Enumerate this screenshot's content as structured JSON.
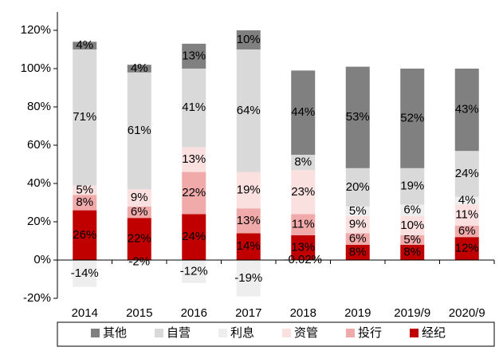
{
  "chart_data": {
    "type": "bar",
    "stacked": true,
    "categories": [
      "2014",
      "2015",
      "2016",
      "2017",
      "2018",
      "2019",
      "2019/9",
      "2020/9"
    ],
    "series": [
      {
        "name": "其他",
        "color": "#808080",
        "values": [
          4,
          4,
          13,
          10,
          44,
          53,
          52,
          43
        ],
        "value_labels": [
          "4%",
          "4%",
          "13%",
          "10%",
          "44%",
          "53%",
          "52%",
          "43%"
        ]
      },
      {
        "name": "自营",
        "color": "#d9d9d9",
        "values": [
          71,
          61,
          41,
          64,
          8,
          20,
          19,
          24
        ],
        "value_labels": [
          "71%",
          "61%",
          "41%",
          "64%",
          "8%",
          "20%",
          "19%",
          "24%"
        ]
      },
      {
        "name": "利息",
        "color": "#eeeeee",
        "values": [
          -14,
          -2,
          -12,
          -19,
          -0.02,
          5,
          6,
          4
        ],
        "value_labels": [
          "-14%",
          "-2%",
          "-12%",
          "-19%",
          "-0.02%",
          "5%",
          "6%",
          "4%"
        ]
      },
      {
        "name": "资管",
        "color": "#fbe0e0",
        "values": [
          5,
          9,
          13,
          19,
          23,
          9,
          10,
          11
        ],
        "value_labels": [
          "5%",
          "9%",
          "13%",
          "19%",
          "23%",
          "9%",
          "10%",
          "11%"
        ]
      },
      {
        "name": "投行",
        "color": "#f0aaaa",
        "values": [
          8,
          6,
          22,
          13,
          11,
          6,
          5,
          6
        ],
        "value_labels": [
          "8%",
          "6%",
          "22%",
          "13%",
          "11%",
          "6%",
          "5%",
          "6%"
        ]
      },
      {
        "name": "经纪",
        "color": "#c00000",
        "values": [
          26,
          22,
          24,
          14,
          13,
          8,
          8,
          12
        ],
        "value_labels": [
          "26%",
          "22%",
          "24%",
          "14%",
          "13%",
          "8%",
          "8%",
          "12%"
        ]
      }
    ],
    "ylim": [
      -20,
      120
    ],
    "yticks": [
      {
        "value": -20,
        "label": "-20%"
      },
      {
        "value": 0,
        "label": "0%"
      },
      {
        "value": 20,
        "label": "20%"
      },
      {
        "value": 40,
        "label": "40%"
      },
      {
        "value": 60,
        "label": "60%"
      },
      {
        "value": 80,
        "label": "80%"
      },
      {
        "value": 100,
        "label": "100%"
      },
      {
        "value": 120,
        "label": "120%"
      }
    ]
  }
}
